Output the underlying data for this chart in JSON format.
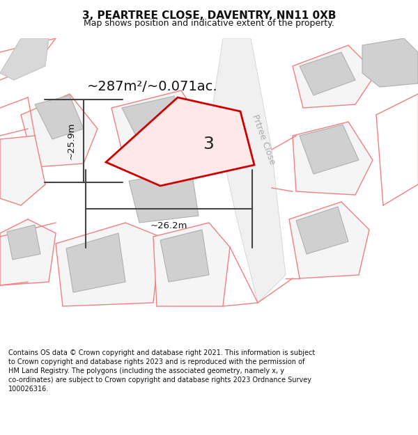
{
  "title": "3, PEARTREE CLOSE, DAVENTRY, NN11 0XB",
  "subtitle": "Map shows position and indicative extent of the property.",
  "footer_line1": "Contains OS data © Crown copyright and database right 2021. This information is subject",
  "footer_line2": "to Crown copyright and database rights 2023 and is reproduced with the permission of",
  "footer_line3": "HM Land Registry. The polygons (including the associated geometry, namely x, y",
  "footer_line4": "co-ordinates) are subject to Crown copyright and database rights 2023 Ordnance Survey",
  "footer_line5": "100026316.",
  "area_label": "~287m²/~0.071ac.",
  "width_label": "~26.2m",
  "height_label": "~25.9m",
  "property_number": "3",
  "subject_color": "#cc0000",
  "road_label": "Prtree Close",
  "dim_line_color": "#444444",
  "map_bg": "#e8e8e8",
  "bldg_fill": "#d0d0d0",
  "bldg_edge": "#b0b0b0",
  "lot_edge": "#f08080",
  "lot_fill": "#f5f5f5",
  "road_fill": "#eeeeee",
  "subject_fill": "#ffe8e8"
}
